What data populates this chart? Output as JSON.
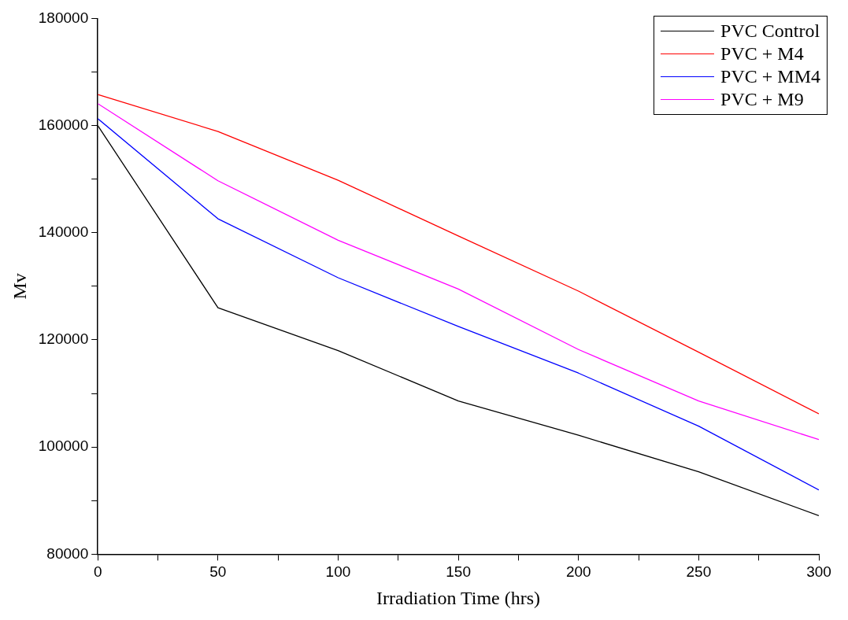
{
  "chart_data": {
    "type": "line",
    "xlabel": "Irradiation Time (hrs)",
    "ylabel": "Mv",
    "x": [
      0,
      50,
      100,
      150,
      200,
      250,
      300
    ],
    "series": [
      {
        "name": "PVC Control",
        "color": "#000000",
        "values": [
          160000,
          126000,
          118000,
          108600,
          102200,
          95400,
          87200
        ]
      },
      {
        "name": "PVC + M4",
        "color": "#ff0000",
        "values": [
          165800,
          158900,
          149800,
          139400,
          129100,
          117700,
          106200
        ]
      },
      {
        "name": "PVC + MM4",
        "color": "#0000ff",
        "values": [
          161300,
          142600,
          131600,
          122500,
          113800,
          103900,
          92000
        ]
      },
      {
        "name": "PVC + M9",
        "color": "#ff00ff",
        "values": [
          164100,
          149700,
          138600,
          129500,
          118200,
          108600,
          101400
        ]
      }
    ],
    "xlim": [
      0,
      300
    ],
    "xticks": [
      0,
      {
        "value": 25,
        "label": null
      },
      50,
      {
        "value": 75,
        "label": null
      },
      100,
      {
        "value": 125,
        "label": null
      },
      150,
      {
        "value": 175,
        "label": null
      },
      200,
      {
        "value": 225,
        "label": null
      },
      250,
      {
        "value": 275,
        "label": null
      },
      300
    ],
    "ylim": [
      80000,
      180000
    ],
    "yticks": [
      80000,
      {
        "value": 90000,
        "label": null
      },
      100000,
      {
        "value": 110000,
        "label": null
      },
      120000,
      {
        "value": 130000,
        "label": null
      },
      140000,
      {
        "value": 150000,
        "label": null
      },
      160000,
      {
        "value": 170000,
        "label": null
      },
      180000
    ],
    "grid": false,
    "legend": "top right",
    "marker": "none",
    "line_style": "solid"
  }
}
